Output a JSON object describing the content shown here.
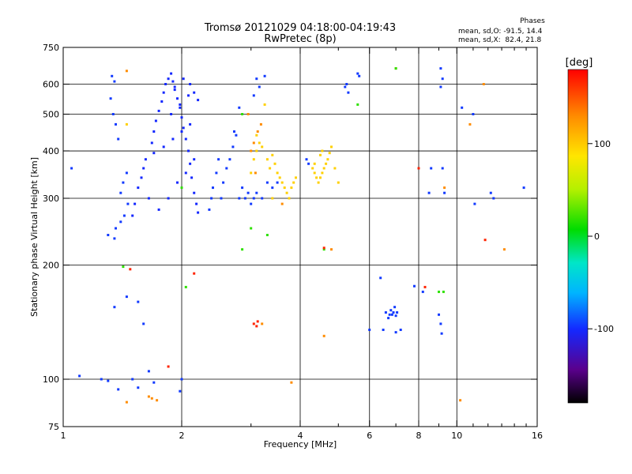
{
  "header": {
    "title_line1": "Tromsø 20121029 04:18:00-04:19:43",
    "title_line2": "RwPretec (8p)",
    "phases_label": "Phases",
    "stat_o": "mean, sd,O: -91.5, 14.4",
    "stat_x": "mean, sd,X:  82.4, 21.8"
  },
  "chart_data": {
    "type": "scatter",
    "title": "Tromsø 20121029 04:18:00-04:19:43",
    "subtitle": "RwPretec (8p)",
    "xlabel": "Frequency [MHz]",
    "ylabel": "Stationary phase Virtual Height [km]",
    "x_scale": "log",
    "y_scale": "log",
    "xlim": [
      1,
      16
    ],
    "ylim": [
      75,
      750
    ],
    "x_ticks": [
      1,
      2,
      4,
      6,
      8,
      10,
      16
    ],
    "x_ticklabels": [
      "1",
      "2",
      "4",
      "6",
      "8",
      "10",
      "16"
    ],
    "x_minor_ticks": [
      3,
      5,
      7,
      9,
      11,
      12,
      13,
      14,
      15
    ],
    "y_ticks": [
      75,
      100,
      200,
      300,
      400,
      500,
      600,
      750
    ],
    "y_ticklabels": [
      "75",
      "100",
      "200",
      "300",
      "400",
      "500",
      "600",
      "750"
    ],
    "grid": true,
    "x_gridlines": [
      2,
      4,
      6,
      8,
      10
    ],
    "y_gridlines": [
      100,
      200,
      300,
      400,
      500,
      600
    ],
    "colorbar": {
      "label": "[deg]",
      "range": [
        -180,
        180
      ],
      "ticks": [
        100,
        0,
        -100
      ],
      "ticklabels": [
        "100",
        "0",
        "-100"
      ],
      "colors": [
        "#000000",
        "#5a008c",
        "#1428ff",
        "#00b4ff",
        "#00e6c8",
        "#00dc00",
        "#b4f000",
        "#ffe600",
        "#ff8c00",
        "#ff0000"
      ]
    },
    "series": [
      {
        "points": [
          [
            1.5,
            270
          ],
          [
            1.52,
            290
          ],
          [
            1.55,
            320
          ],
          [
            1.58,
            340
          ],
          [
            1.6,
            360
          ],
          [
            1.62,
            380
          ],
          [
            1.65,
            300
          ],
          [
            1.68,
            420
          ],
          [
            1.7,
            450
          ],
          [
            1.72,
            480
          ],
          [
            1.75,
            510
          ],
          [
            1.78,
            540
          ],
          [
            1.8,
            570
          ],
          [
            1.82,
            600
          ],
          [
            1.85,
            620
          ],
          [
            1.88,
            640
          ],
          [
            1.9,
            610
          ],
          [
            1.92,
            580
          ],
          [
            1.95,
            550
          ],
          [
            1.98,
            520
          ],
          [
            2.0,
            490
          ],
          [
            2.02,
            460
          ],
          [
            2.05,
            430
          ],
          [
            2.08,
            400
          ],
          [
            2.1,
            370
          ],
          [
            2.12,
            340
          ],
          [
            2.15,
            310
          ],
          [
            2.18,
            290
          ],
          [
            2.2,
            275
          ],
          [
            1.75,
            280
          ],
          [
            1.85,
            300
          ],
          [
            1.95,
            330
          ],
          [
            2.05,
            350
          ],
          [
            2.15,
            380
          ],
          [
            1.7,
            395
          ],
          [
            1.8,
            410
          ],
          [
            1.9,
            430
          ],
          [
            2.0,
            450
          ],
          [
            2.1,
            470
          ],
          [
            1.88,
            500
          ],
          [
            1.98,
            530
          ],
          [
            2.08,
            560
          ],
          [
            1.92,
            590
          ],
          [
            2.02,
            620
          ],
          [
            2.1,
            600
          ],
          [
            2.15,
            570
          ],
          [
            2.2,
            545
          ]
        ],
        "phase": -100
      },
      {
        "points": [
          [
            2.35,
            280
          ],
          [
            2.38,
            300
          ],
          [
            2.4,
            320
          ],
          [
            2.45,
            350
          ],
          [
            2.48,
            380
          ],
          [
            2.52,
            300
          ],
          [
            2.55,
            330
          ],
          [
            2.6,
            360
          ],
          [
            2.65,
            380
          ],
          [
            2.7,
            410
          ],
          [
            2.72,
            450
          ],
          [
            2.75,
            440
          ],
          [
            2.8,
            300
          ],
          [
            2.85,
            320
          ],
          [
            2.9,
            300
          ],
          [
            2.95,
            310
          ],
          [
            3.0,
            290
          ],
          [
            3.05,
            300
          ],
          [
            3.1,
            310
          ],
          [
            3.2,
            300
          ],
          [
            3.3,
            330
          ],
          [
            3.4,
            320
          ],
          [
            3.5,
            330
          ],
          [
            2.8,
            520
          ],
          [
            3.1,
            620
          ],
          [
            3.25,
            630
          ],
          [
            3.15,
            590
          ],
          [
            3.05,
            560
          ],
          [
            1.33,
            630
          ],
          [
            1.35,
            610
          ],
          [
            1.32,
            550
          ],
          [
            1.34,
            500
          ],
          [
            1.36,
            470
          ],
          [
            1.38,
            430
          ],
          [
            1.4,
            310
          ],
          [
            1.42,
            330
          ],
          [
            1.45,
            350
          ],
          [
            1.4,
            260
          ],
          [
            1.43,
            270
          ],
          [
            1.46,
            290
          ],
          [
            1.36,
            250
          ],
          [
            1.35,
            235
          ],
          [
            1.3,
            240
          ],
          [
            1.05,
            360
          ],
          [
            4.15,
            380
          ],
          [
            4.2,
            370
          ],
          [
            5.2,
            590
          ],
          [
            5.25,
            600
          ],
          [
            5.3,
            570
          ],
          [
            5.6,
            640
          ],
          [
            5.65,
            630
          ],
          [
            1.45,
            165
          ],
          [
            1.35,
            155
          ],
          [
            1.55,
            160
          ],
          [
            1.6,
            140
          ],
          [
            1.5,
            100
          ],
          [
            1.55,
            95
          ],
          [
            1.65,
            105
          ],
          [
            1.7,
            98
          ],
          [
            2.0,
            100
          ],
          [
            1.98,
            93
          ],
          [
            1.1,
            102
          ],
          [
            1.25,
            100
          ],
          [
            1.3,
            99
          ],
          [
            1.38,
            94
          ],
          [
            6.6,
            150
          ],
          [
            6.7,
            145
          ],
          [
            6.75,
            148
          ],
          [
            6.8,
            152
          ],
          [
            6.9,
            150
          ],
          [
            7.0,
            147
          ],
          [
            6.95,
            155
          ],
          [
            6.85,
            148
          ],
          [
            7.05,
            150
          ],
          [
            6.4,
            185
          ],
          [
            6.5,
            135
          ],
          [
            7.0,
            133
          ],
          [
            7.2,
            135
          ],
          [
            6.0,
            135
          ],
          [
            7.8,
            176
          ],
          [
            8.2,
            170
          ],
          [
            9.0,
            148
          ],
          [
            9.1,
            140
          ],
          [
            9.15,
            132
          ],
          [
            8.5,
            310
          ],
          [
            8.6,
            360
          ],
          [
            9.2,
            360
          ],
          [
            9.3,
            310
          ],
          [
            9.1,
            590
          ],
          [
            9.2,
            620
          ],
          [
            9.1,
            660
          ],
          [
            10.3,
            520
          ],
          [
            11.0,
            500
          ],
          [
            11.1,
            290
          ],
          [
            12.2,
            310
          ],
          [
            12.4,
            300
          ],
          [
            14.8,
            320
          ]
        ],
        "phase": -95
      },
      {
        "points": [
          [
            3.05,
            380
          ],
          [
            3.1,
            400
          ],
          [
            3.15,
            420
          ],
          [
            3.2,
            410
          ],
          [
            3.3,
            380
          ],
          [
            3.35,
            360
          ],
          [
            3.4,
            390
          ],
          [
            3.45,
            370
          ],
          [
            3.5,
            350
          ],
          [
            3.55,
            340
          ],
          [
            3.6,
            330
          ],
          [
            3.65,
            320
          ],
          [
            3.7,
            310
          ],
          [
            3.75,
            300
          ],
          [
            3.8,
            320
          ],
          [
            3.85,
            330
          ],
          [
            3.9,
            340
          ],
          [
            4.3,
            360
          ],
          [
            4.35,
            350
          ],
          [
            4.4,
            340
          ],
          [
            4.45,
            330
          ],
          [
            4.5,
            340
          ],
          [
            4.55,
            350
          ],
          [
            4.6,
            360
          ],
          [
            4.65,
            370
          ],
          [
            4.7,
            380
          ],
          [
            4.75,
            395
          ],
          [
            4.8,
            410
          ],
          [
            4.5,
            390
          ],
          [
            4.55,
            400
          ],
          [
            4.35,
            370
          ],
          [
            3.25,
            530
          ],
          [
            3.1,
            440
          ],
          [
            3.0,
            350
          ],
          [
            3.4,
            300
          ],
          [
            1.45,
            470
          ],
          [
            5.0,
            330
          ],
          [
            4.9,
            360
          ]
        ],
        "phase": 110
      },
      {
        "points": [
          [
            3.0,
            400
          ],
          [
            3.05,
            420
          ],
          [
            3.12,
            450
          ],
          [
            3.18,
            470
          ],
          [
            3.08,
            350
          ],
          [
            2.95,
            500
          ],
          [
            3.6,
            290
          ],
          [
            4.8,
            220
          ],
          [
            4.6,
            130
          ],
          [
            9.3,
            320
          ],
          [
            7.0,
            660
          ],
          [
            10.8,
            470
          ],
          [
            1.45,
            650
          ],
          [
            11.7,
            600
          ],
          [
            13.2,
            220
          ],
          [
            10.2,
            88
          ],
          [
            1.45,
            87
          ],
          [
            1.65,
            90
          ],
          [
            1.68,
            89
          ],
          [
            1.73,
            88
          ],
          [
            3.2,
            140
          ],
          [
            3.8,
            98
          ]
        ],
        "phase": 140
      },
      {
        "points": [
          [
            3.3,
            240
          ],
          [
            3.0,
            250
          ],
          [
            2.85,
            220
          ],
          [
            7.0,
            660
          ],
          [
            9.0,
            170
          ],
          [
            9.25,
            170
          ],
          [
            2.0,
            320
          ],
          [
            2.85,
            500
          ],
          [
            4.6,
            220
          ],
          [
            5.6,
            530
          ],
          [
            1.42,
            198
          ],
          [
            2.05,
            175
          ]
        ],
        "phase": 30
      },
      {
        "points": [
          [
            3.05,
            140
          ],
          [
            3.1,
            138
          ],
          [
            3.12,
            142
          ],
          [
            4.6,
            222
          ],
          [
            11.8,
            233
          ],
          [
            1.48,
            195
          ],
          [
            2.15,
            190
          ],
          [
            1.85,
            108
          ],
          [
            8.0,
            360
          ],
          [
            8.3,
            175
          ]
        ],
        "phase": 170
      }
    ]
  }
}
